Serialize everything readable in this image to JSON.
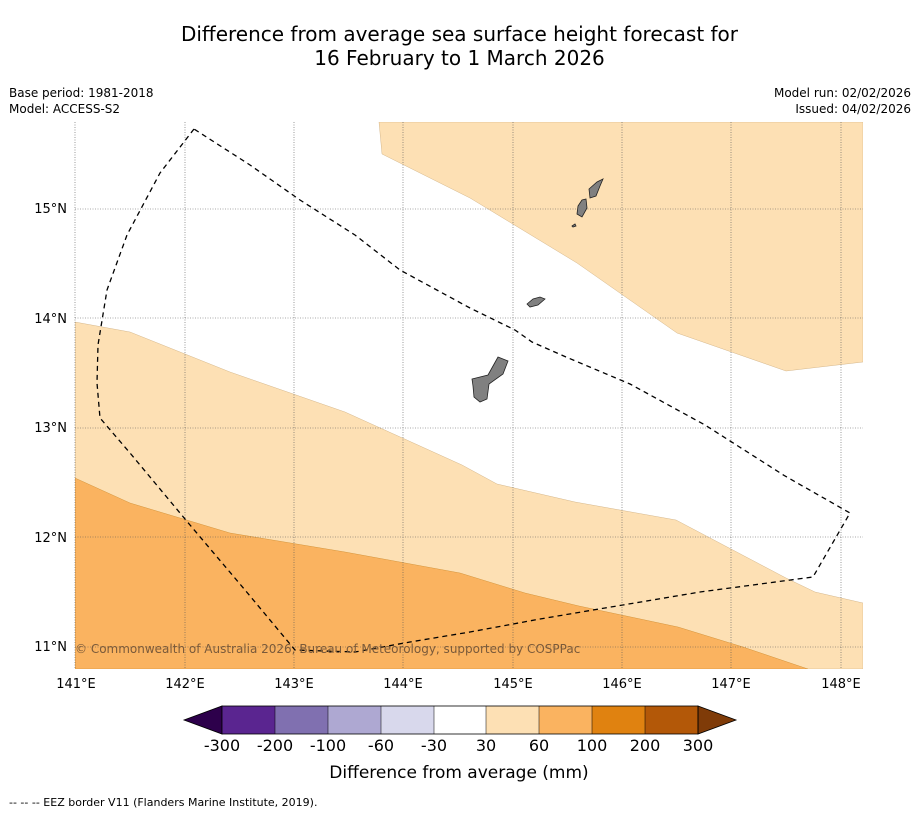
{
  "title_line1": "Difference from average sea surface height forecast for",
  "title_line2": "16 February to 1 March 2026",
  "base_period": "Base period: 1981-2018",
  "model": "Model: ACCESS-S2",
  "model_run": "Model run: 02/02/2026",
  "issued": "Issued: 04/02/2026",
  "copyright": "© Commonwealth of Australia 2026, Bureau of Meteorology, supported by COSPPac",
  "footnote": "--  --  -- EEZ border V11 (Flanders Marine Institute, 2019).",
  "map": {
    "lon_range": [
      141,
      148.2
    ],
    "lat_range": [
      10.8,
      15.8
    ],
    "lon_ticks": [
      141,
      142,
      143,
      144,
      145,
      146,
      147,
      148
    ],
    "lat_ticks": [
      11,
      12,
      13,
      14,
      15
    ],
    "lon_labels": [
      "141°E",
      "142°E",
      "143°E",
      "144°E",
      "145°E",
      "146°E",
      "147°E",
      "148°E"
    ],
    "lat_labels": [
      "11°N",
      "12°N",
      "13°N",
      "14°N",
      "15°N"
    ],
    "grid": true
  },
  "colorbar": {
    "label": "Difference from average (mm)",
    "tick_labels": [
      "-300",
      "-200",
      "-100",
      "-60",
      "-30",
      "30",
      "60",
      "100",
      "200",
      "300"
    ],
    "colors": [
      "#5a2590",
      "#8070b0",
      "#aea8d2",
      "#d8d8ec",
      "#ffffff",
      "#fde0b4",
      "#fab360",
      "#e08210",
      "#b35808"
    ],
    "extend_low_color": "#2d004b",
    "extend_high_color": "#7f3b08"
  },
  "colors": {
    "band_30_60": "#fde0b4",
    "band_60_100": "#fab360",
    "land": "#808080"
  }
}
